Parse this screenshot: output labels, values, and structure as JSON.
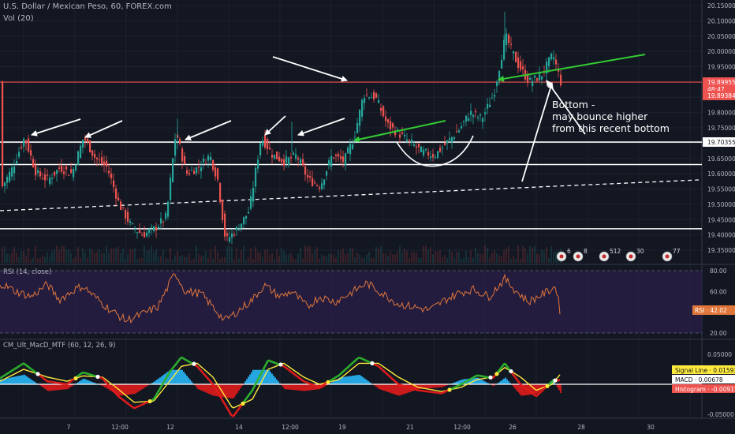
{
  "header": {
    "symbol_line": "U.S. Dollar / Mexican Peso, 60, FOREX.com",
    "vol_line": "Vol (20)",
    "rsi_line": "RSI (14, close)",
    "macd_line": "CM_Ult_MacD_MTF (60, 12, 26, 9)"
  },
  "price_axis": {
    "ticks": [
      "20.15000",
      "20.10000",
      "20.05000",
      "20.00000",
      "19.95000",
      "19.90000",
      "19.85000",
      "19.80000",
      "19.75000",
      "19.70000",
      "19.65000",
      "19.60000",
      "19.55000",
      "19.50000",
      "19.45000",
      "19.40000",
      "19.35000"
    ],
    "tags": [
      {
        "text": "19.89955",
        "bg": "#ef5350",
        "fg": "#ffffff",
        "value": 19.89955
      },
      {
        "text": "48:47",
        "bg": "#ef5350",
        "fg": "#ffffff",
        "value": 19.877
      },
      {
        "text": "19.89384",
        "bg": "#ef5350",
        "fg": "#ffffff",
        "value": 19.856
      },
      {
        "text": "19.70355",
        "bg": "#ffffff",
        "fg": "#131722",
        "value": 19.70355
      }
    ]
  },
  "rsi_axis": {
    "ticks": [
      "80.00",
      "60.00",
      "40.00",
      "20.00"
    ],
    "tag": {
      "text": "RSI · 42.02",
      "value": 42.02
    }
  },
  "macd_axis": {
    "ticks": [
      "0.05000",
      "0.00000",
      "-0.05000"
    ],
    "tags": [
      {
        "text": "Signal Line · 0.01593",
        "bg": "#ffeb3b",
        "fg": "#131722"
      },
      {
        "text": "MACD · 0.00678",
        "bg": "#ffffff",
        "fg": "#131722"
      },
      {
        "text": "Histogram · -0.00915",
        "bg": "#ef5350",
        "fg": "#ffffff"
      }
    ]
  },
  "time_axis": [
    "7",
    "12:00",
    "12",
    "14",
    "12:00",
    "19",
    "21",
    "12:00",
    "26",
    "28",
    "30"
  ],
  "annotation": {
    "lines": [
      "Bottom -",
      "may bounce higher",
      "from this recent bottom"
    ]
  },
  "events": [
    "6",
    "8",
    "512",
    "30",
    "77"
  ],
  "colors": {
    "up": "#26a69a",
    "down": "#ef5350",
    "rsi": "#e0763a",
    "macd_up": "#2db02d",
    "macd_down": "#e01b1b",
    "arrow_green": "#33cc33"
  },
  "chart_data": {
    "type": "candlestick",
    "ylim": [
      19.33,
      20.17
    ],
    "lines": [
      {
        "kind": "horizontal",
        "value": 19.8995,
        "color": "#ef5350"
      },
      {
        "kind": "horizontal",
        "value": 19.7035,
        "color": "#ffffff"
      },
      {
        "kind": "horizontal",
        "value": 19.63,
        "color": "#ffffff"
      },
      {
        "kind": "horizontal",
        "value": 19.42,
        "color": "#ffffff"
      }
    ],
    "close_path": [
      [
        0,
        19.55
      ],
      [
        15,
        19.62
      ],
      [
        30,
        19.72
      ],
      [
        45,
        19.6
      ],
      [
        60,
        19.58
      ],
      [
        75,
        19.62
      ],
      [
        90,
        19.6
      ],
      [
        105,
        19.72
      ],
      [
        120,
        19.65
      ],
      [
        135,
        19.62
      ],
      [
        150,
        19.5
      ],
      [
        165,
        19.43
      ],
      [
        180,
        19.4
      ],
      [
        195,
        19.42
      ],
      [
        210,
        19.46
      ],
      [
        222,
        19.74
      ],
      [
        235,
        19.6
      ],
      [
        250,
        19.62
      ],
      [
        265,
        19.66
      ],
      [
        275,
        19.58
      ],
      [
        285,
        19.38
      ],
      [
        300,
        19.42
      ],
      [
        315,
        19.48
      ],
      [
        330,
        19.72
      ],
      [
        345,
        19.66
      ],
      [
        360,
        19.64
      ],
      [
        375,
        19.66
      ],
      [
        390,
        19.58
      ],
      [
        405,
        19.56
      ],
      [
        420,
        19.66
      ],
      [
        435,
        19.64
      ],
      [
        448,
        19.72
      ],
      [
        460,
        19.86
      ],
      [
        475,
        19.85
      ],
      [
        490,
        19.76
      ],
      [
        505,
        19.73
      ],
      [
        520,
        19.7
      ],
      [
        535,
        19.67
      ],
      [
        550,
        19.66
      ],
      [
        565,
        19.7
      ],
      [
        580,
        19.74
      ],
      [
        595,
        19.8
      ],
      [
        610,
        19.78
      ],
      [
        625,
        19.86
      ],
      [
        640,
        20.05
      ],
      [
        655,
        19.96
      ],
      [
        670,
        19.9
      ],
      [
        685,
        19.92
      ],
      [
        700,
        19.99
      ],
      [
        710,
        19.9
      ]
    ],
    "rsi": [
      [
        0,
        68
      ],
      [
        20,
        60
      ],
      [
        40,
        55
      ],
      [
        60,
        67
      ],
      [
        75,
        52
      ],
      [
        95,
        62
      ],
      [
        105,
        65
      ],
      [
        120,
        55
      ],
      [
        140,
        42
      ],
      [
        160,
        32
      ],
      [
        180,
        38
      ],
      [
        200,
        45
      ],
      [
        222,
        78
      ],
      [
        235,
        60
      ],
      [
        255,
        58
      ],
      [
        270,
        45
      ],
      [
        285,
        32
      ],
      [
        300,
        40
      ],
      [
        320,
        52
      ],
      [
        335,
        66
      ],
      [
        355,
        55
      ],
      [
        370,
        60
      ],
      [
        390,
        45
      ],
      [
        405,
        55
      ],
      [
        425,
        50
      ],
      [
        448,
        60
      ],
      [
        465,
        68
      ],
      [
        485,
        58
      ],
      [
        505,
        48
      ],
      [
        525,
        45
      ],
      [
        545,
        42
      ],
      [
        565,
        52
      ],
      [
        580,
        58
      ],
      [
        600,
        62
      ],
      [
        620,
        55
      ],
      [
        640,
        72
      ],
      [
        655,
        60
      ],
      [
        670,
        50
      ],
      [
        690,
        58
      ],
      [
        705,
        65
      ],
      [
        710,
        42
      ]
    ],
    "macd": [
      [
        0,
        0.01
      ],
      [
        30,
        0.035
      ],
      [
        60,
        0.005
      ],
      [
        85,
        0.0
      ],
      [
        105,
        0.02
      ],
      [
        130,
        0.01
      ],
      [
        150,
        -0.02
      ],
      [
        170,
        -0.04
      ],
      [
        195,
        -0.025
      ],
      [
        215,
        0.02
      ],
      [
        230,
        0.045
      ],
      [
        250,
        0.03
      ],
      [
        270,
        0.0
      ],
      [
        295,
        -0.055
      ],
      [
        320,
        -0.01
      ],
      [
        340,
        0.04
      ],
      [
        360,
        0.03
      ],
      [
        385,
        0.005
      ],
      [
        405,
        -0.005
      ],
      [
        430,
        0.015
      ],
      [
        455,
        0.045
      ],
      [
        480,
        0.03
      ],
      [
        505,
        0.0
      ],
      [
        530,
        -0.01
      ],
      [
        560,
        -0.015
      ],
      [
        585,
        0.0
      ],
      [
        605,
        0.015
      ],
      [
        625,
        0.01
      ],
      [
        640,
        0.035
      ],
      [
        660,
        0.0
      ],
      [
        680,
        -0.02
      ],
      [
        700,
        0.005
      ],
      [
        710,
        0.007
      ]
    ],
    "signal": [
      [
        0,
        0.005
      ],
      [
        30,
        0.025
      ],
      [
        60,
        0.012
      ],
      [
        85,
        0.005
      ],
      [
        105,
        0.014
      ],
      [
        130,
        0.012
      ],
      [
        150,
        -0.008
      ],
      [
        170,
        -0.03
      ],
      [
        195,
        -0.028
      ],
      [
        215,
        0.005
      ],
      [
        230,
        0.03
      ],
      [
        250,
        0.035
      ],
      [
        270,
        0.012
      ],
      [
        295,
        -0.04
      ],
      [
        320,
        -0.025
      ],
      [
        340,
        0.025
      ],
      [
        360,
        0.035
      ],
      [
        385,
        0.012
      ],
      [
        405,
        0.0
      ],
      [
        430,
        0.008
      ],
      [
        455,
        0.035
      ],
      [
        480,
        0.035
      ],
      [
        505,
        0.012
      ],
      [
        530,
        -0.005
      ],
      [
        560,
        -0.012
      ],
      [
        585,
        -0.005
      ],
      [
        605,
        0.008
      ],
      [
        625,
        0.012
      ],
      [
        640,
        0.028
      ],
      [
        660,
        0.012
      ],
      [
        680,
        -0.01
      ],
      [
        700,
        0.0
      ],
      [
        710,
        0.016
      ]
    ]
  }
}
